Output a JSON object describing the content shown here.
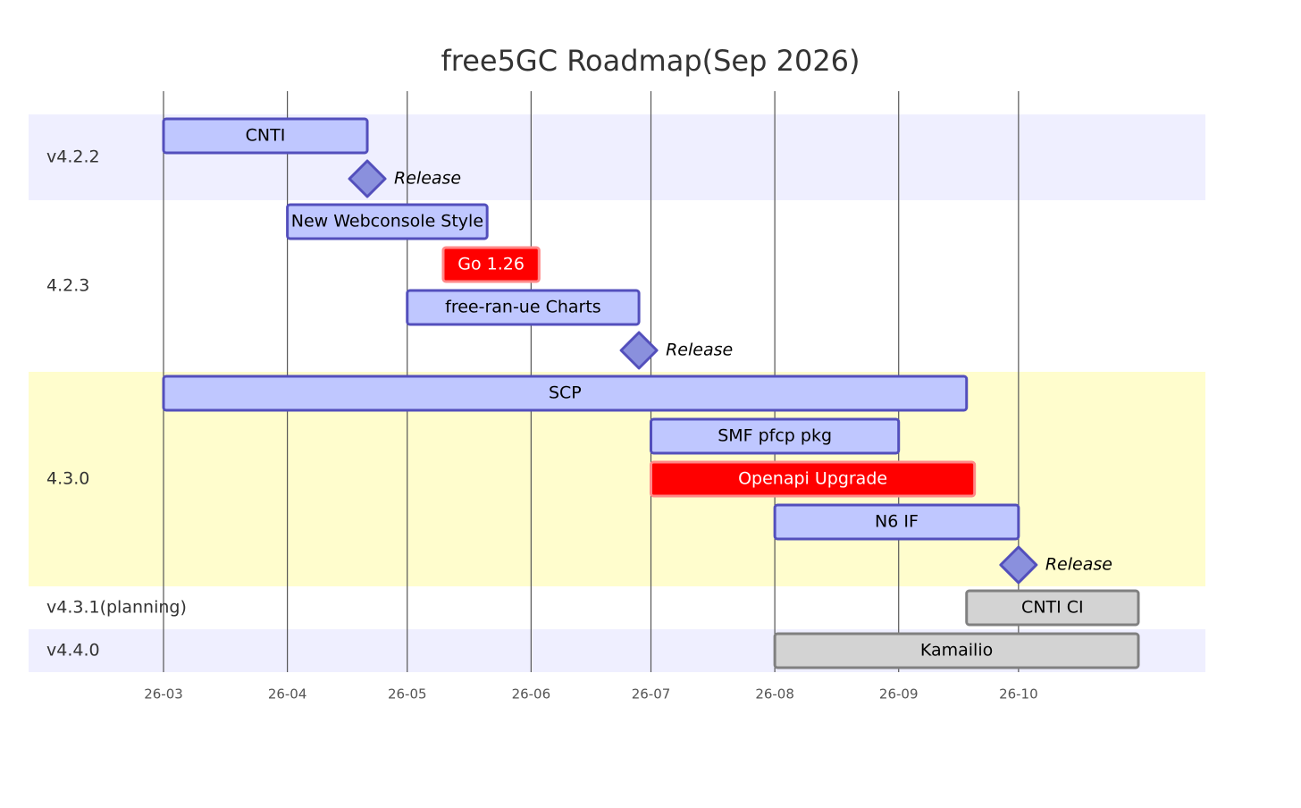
{
  "chart_data": {
    "type": "gantt",
    "title": "free5GC Roadmap(Sep 2026)",
    "xlim": [
      "2026-03-01",
      "2026-10-31"
    ],
    "xticks": [
      {
        "value": "2026-03-01",
        "label": "26-03"
      },
      {
        "value": "2026-04-01",
        "label": "26-04"
      },
      {
        "value": "2026-05-01",
        "label": "26-05"
      },
      {
        "value": "2026-06-01",
        "label": "26-06"
      },
      {
        "value": "2026-07-01",
        "label": "26-07"
      },
      {
        "value": "2026-08-01",
        "label": "26-08"
      },
      {
        "value": "2026-09-01",
        "label": "26-09"
      },
      {
        "value": "2026-10-01",
        "label": "26-10"
      }
    ],
    "grid": true,
    "status_colors": {
      "normal": {
        "fill": "#bfc7ff",
        "stroke": "#534fbc",
        "text": "#000000"
      },
      "crit": {
        "fill": "#ff0000",
        "stroke": "#ff8888",
        "text": "#ffffff"
      },
      "done": {
        "fill": "#d3d3d3",
        "stroke": "#808080",
        "text": "#000000"
      },
      "milestone": {
        "fill": "#8a90dd",
        "stroke": "#534fbc",
        "text": "#000000"
      }
    },
    "sections": [
      {
        "name": "v4.2.2",
        "color": "#efefff",
        "tasks": [
          {
            "name": "CNTI",
            "start": "2026-03-01",
            "end": "2026-04-21",
            "status": "normal"
          },
          {
            "name": "Release",
            "start": "2026-04-21",
            "status": "milestone"
          }
        ]
      },
      {
        "name": "4.2.3",
        "color": "#ffffff",
        "tasks": [
          {
            "name": "New Webconsole Style",
            "start": "2026-04-01",
            "end": "2026-05-21",
            "status": "normal"
          },
          {
            "name": "Go 1.26",
            "start": "2026-05-10",
            "end": "2026-06-03",
            "status": "crit"
          },
          {
            "name": "free-ran-ue Charts",
            "start": "2026-05-01",
            "end": "2026-06-28",
            "status": "normal"
          },
          {
            "name": "Release",
            "start": "2026-06-28",
            "status": "milestone"
          }
        ]
      },
      {
        "name": "4.3.0",
        "color": "#fffdcd",
        "tasks": [
          {
            "name": "SCP",
            "start": "2026-03-01",
            "end": "2026-09-18",
            "status": "normal"
          },
          {
            "name": "SMF pfcp pkg",
            "start": "2026-07-01",
            "end": "2026-09-01",
            "status": "normal"
          },
          {
            "name": "Openapi Upgrade",
            "start": "2026-07-01",
            "end": "2026-09-20",
            "status": "crit"
          },
          {
            "name": "N6 IF",
            "start": "2026-08-01",
            "end": "2026-10-01",
            "status": "normal"
          },
          {
            "name": "Release",
            "start": "2026-10-01",
            "status": "milestone"
          }
        ]
      },
      {
        "name": "v4.3.1(planning)",
        "color": "#ffffff",
        "tasks": [
          {
            "name": "CNTI CI",
            "start": "2026-09-18",
            "end": "2026-10-31",
            "status": "done"
          }
        ]
      },
      {
        "name": "v4.4.0",
        "color": "#efefff",
        "tasks": [
          {
            "name": "Kamailio",
            "start": "2026-08-01",
            "end": "2026-10-31",
            "status": "done"
          }
        ]
      }
    ]
  }
}
